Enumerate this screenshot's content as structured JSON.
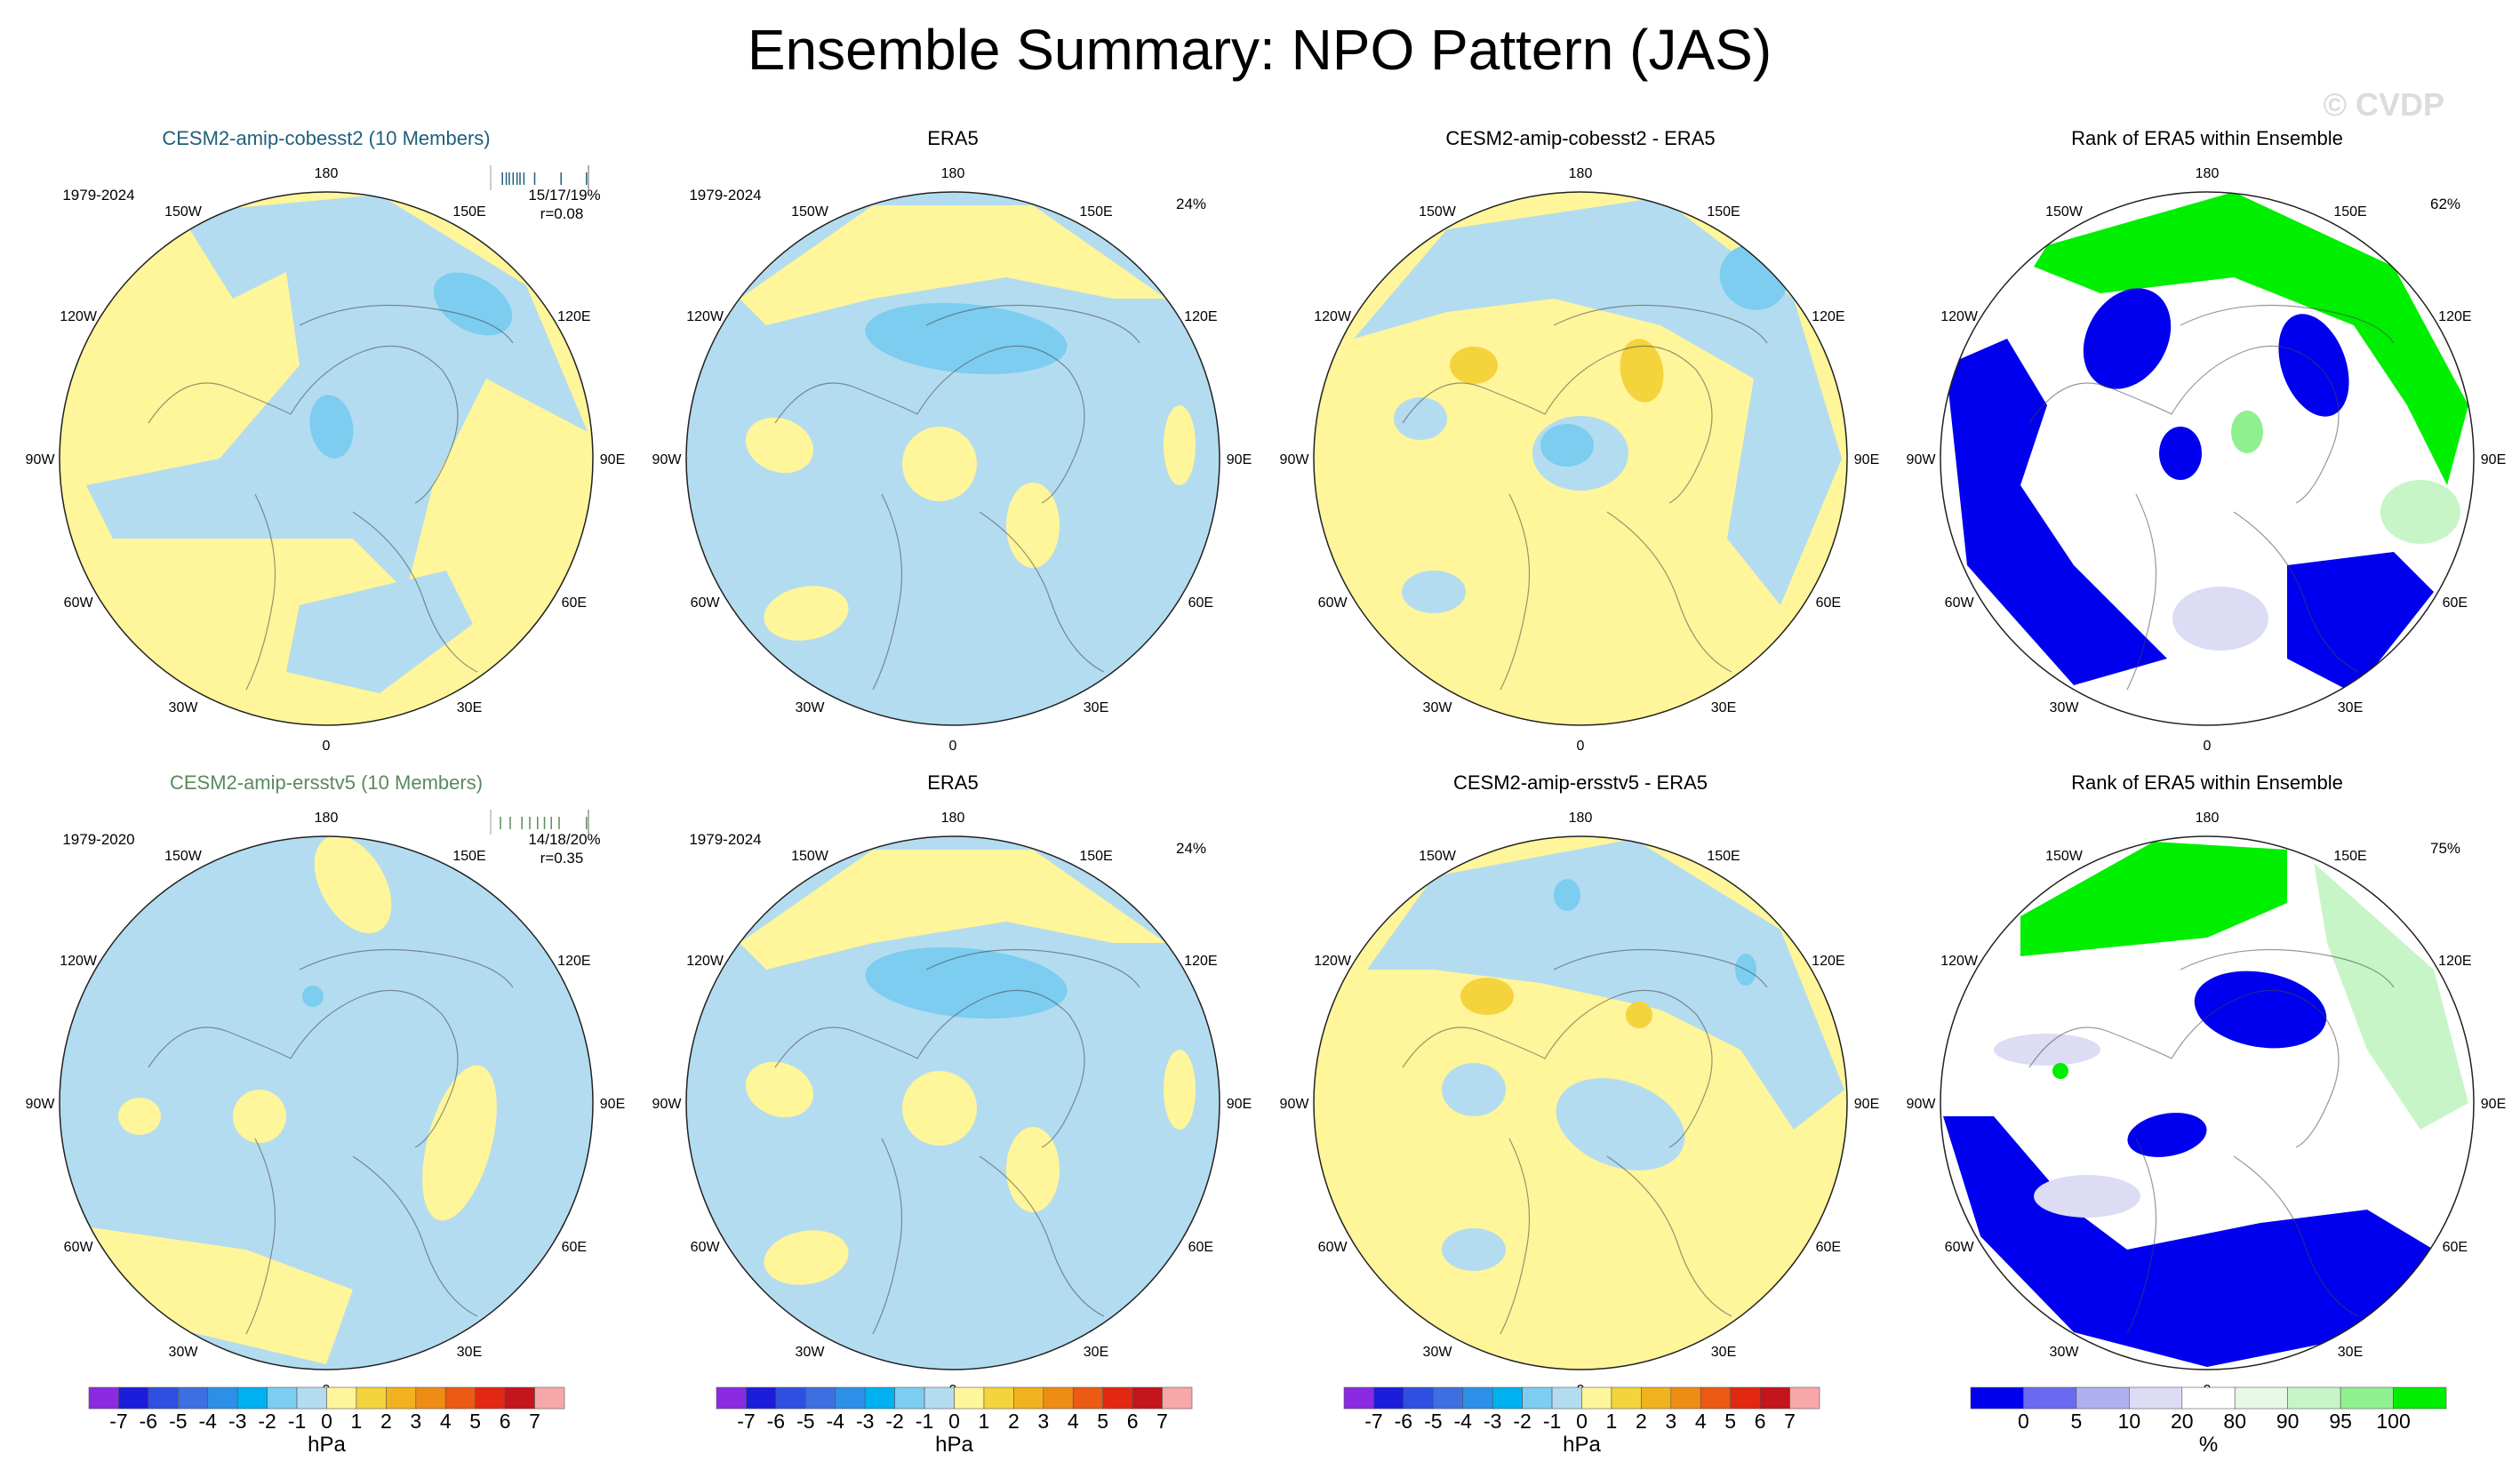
{
  "figure": {
    "title": "Ensemble Summary: NPO Pattern (JAS)",
    "watermark": "© CVDP"
  },
  "chart_data": {
    "type": "polar-map-grid",
    "units_label": "hPa",
    "rank_units_label": "%",
    "lon_labels": [
      "180",
      "150E",
      "120E",
      "90E",
      "60E",
      "30E",
      "0",
      "30W",
      "60W",
      "90W",
      "120W",
      "150W"
    ],
    "pressure_colorbar": {
      "labels": [
        "-7",
        "-6",
        "-5",
        "-4",
        "-3",
        "-2",
        "-1",
        "0",
        "1",
        "2",
        "3",
        "4",
        "5",
        "6",
        "7"
      ],
      "colors": [
        "#8a2be2",
        "#1c1cdb",
        "#2f4fe0",
        "#3d6fe0",
        "#2d90e8",
        "#00b0f0",
        "#7ccdf0",
        "#b3dcf0",
        "#fff59a",
        "#f5d33c",
        "#f2b21e",
        "#ee8c16",
        "#ec5a14",
        "#e22812",
        "#c3151b",
        "#f7a7a7"
      ]
    },
    "rank_colorbar": {
      "labels": [
        "0",
        "5",
        "10",
        "20",
        "80",
        "90",
        "95",
        "100"
      ],
      "colors": [
        "#0000ee",
        "#6a6af0",
        "#b0b0f0",
        "#dcdcf5",
        "#ffffff",
        "#e6f8e6",
        "#c8f5c8",
        "#8ff08f",
        "#00ee00"
      ]
    },
    "rows": [
      {
        "panels": [
          {
            "title": "CESM2-amip-cobesst2 (10 Members)",
            "title_color": "#1f5f7a",
            "left_note": "1979-2024",
            "right_note_1": "15/17/19%",
            "right_note_2": "r=0.08",
            "ticks": [
              0.12,
              0.16,
              0.19,
              0.23,
              0.27,
              0.3,
              0.34,
              0.45,
              0.72,
              0.98
            ],
            "kind": "model1"
          },
          {
            "title": "ERA5",
            "title_color": "#000000",
            "left_note": "1979-2024",
            "right_note_1": "24%",
            "right_note_2": "",
            "kind": "era5"
          },
          {
            "title": "CESM2-amip-cobesst2 - ERA5",
            "title_color": "#000000",
            "left_note": "",
            "right_note_1": "",
            "right_note_2": "",
            "kind": "diff1"
          },
          {
            "title": "Rank of ERA5 within Ensemble",
            "title_color": "#000000",
            "left_note": "",
            "right_note_1": "62%",
            "right_note_2": "",
            "kind": "rank1"
          }
        ]
      },
      {
        "panels": [
          {
            "title": "CESM2-amip-ersstv5 (10 Members)",
            "title_color": "#5a8a5a",
            "left_note": "1979-2020",
            "right_note_1": "14/18/20%",
            "right_note_2": "r=0.35",
            "ticks": [
              0.1,
              0.2,
              0.32,
              0.4,
              0.48,
              0.55,
              0.62,
              0.7,
              0.98
            ],
            "kind": "model2"
          },
          {
            "title": "ERA5",
            "title_color": "#000000",
            "left_note": "1979-2024",
            "right_note_1": "24%",
            "right_note_2": "",
            "kind": "era5"
          },
          {
            "title": "CESM2-amip-ersstv5 - ERA5",
            "title_color": "#000000",
            "left_note": "",
            "right_note_1": "",
            "right_note_2": "",
            "kind": "diff2"
          },
          {
            "title": "Rank of ERA5 within Ensemble",
            "title_color": "#000000",
            "left_note": "",
            "right_note_1": "75%",
            "right_note_2": "",
            "kind": "rank2"
          }
        ]
      }
    ]
  }
}
